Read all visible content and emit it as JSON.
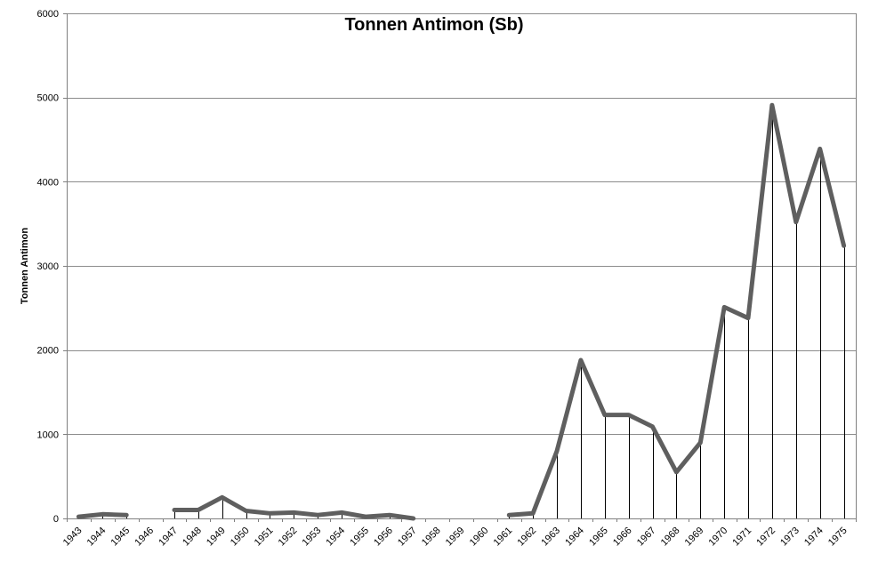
{
  "chart_data": {
    "type": "line",
    "title": "Tonnen Antimon (Sb)",
    "xlabel": "",
    "ylabel": "Tonnen Antimon",
    "ylim": [
      0,
      6000
    ],
    "y_ticks": [
      0,
      1000,
      2000,
      3000,
      4000,
      5000,
      6000
    ],
    "grid": true,
    "legend": "none",
    "colors": {
      "line": "#5f5f5f",
      "gridline": "#8c8c8c",
      "drop_line": "#000000",
      "axis": "#808080"
    },
    "categories": [
      "1943",
      "1944",
      "1945",
      "1946",
      "1947",
      "1948",
      "1949",
      "1950",
      "1951",
      "1952",
      "1953",
      "1954",
      "1955",
      "1956",
      "1957",
      "1958",
      "1959",
      "1960",
      "1961",
      "1962",
      "1963",
      "1964",
      "1965",
      "1966",
      "1967",
      "1968",
      "1969",
      "1970",
      "1971",
      "1972",
      "1973",
      "1974",
      "1975"
    ],
    "series": [
      {
        "values": [
          20,
          50,
          40,
          null,
          100,
          100,
          250,
          90,
          60,
          70,
          40,
          70,
          20,
          40,
          0,
          null,
          null,
          null,
          40,
          60,
          800,
          1880,
          1230,
          1230,
          1090,
          550,
          900,
          2510,
          2380,
          4910,
          3520,
          4390,
          3240
        ]
      }
    ]
  }
}
